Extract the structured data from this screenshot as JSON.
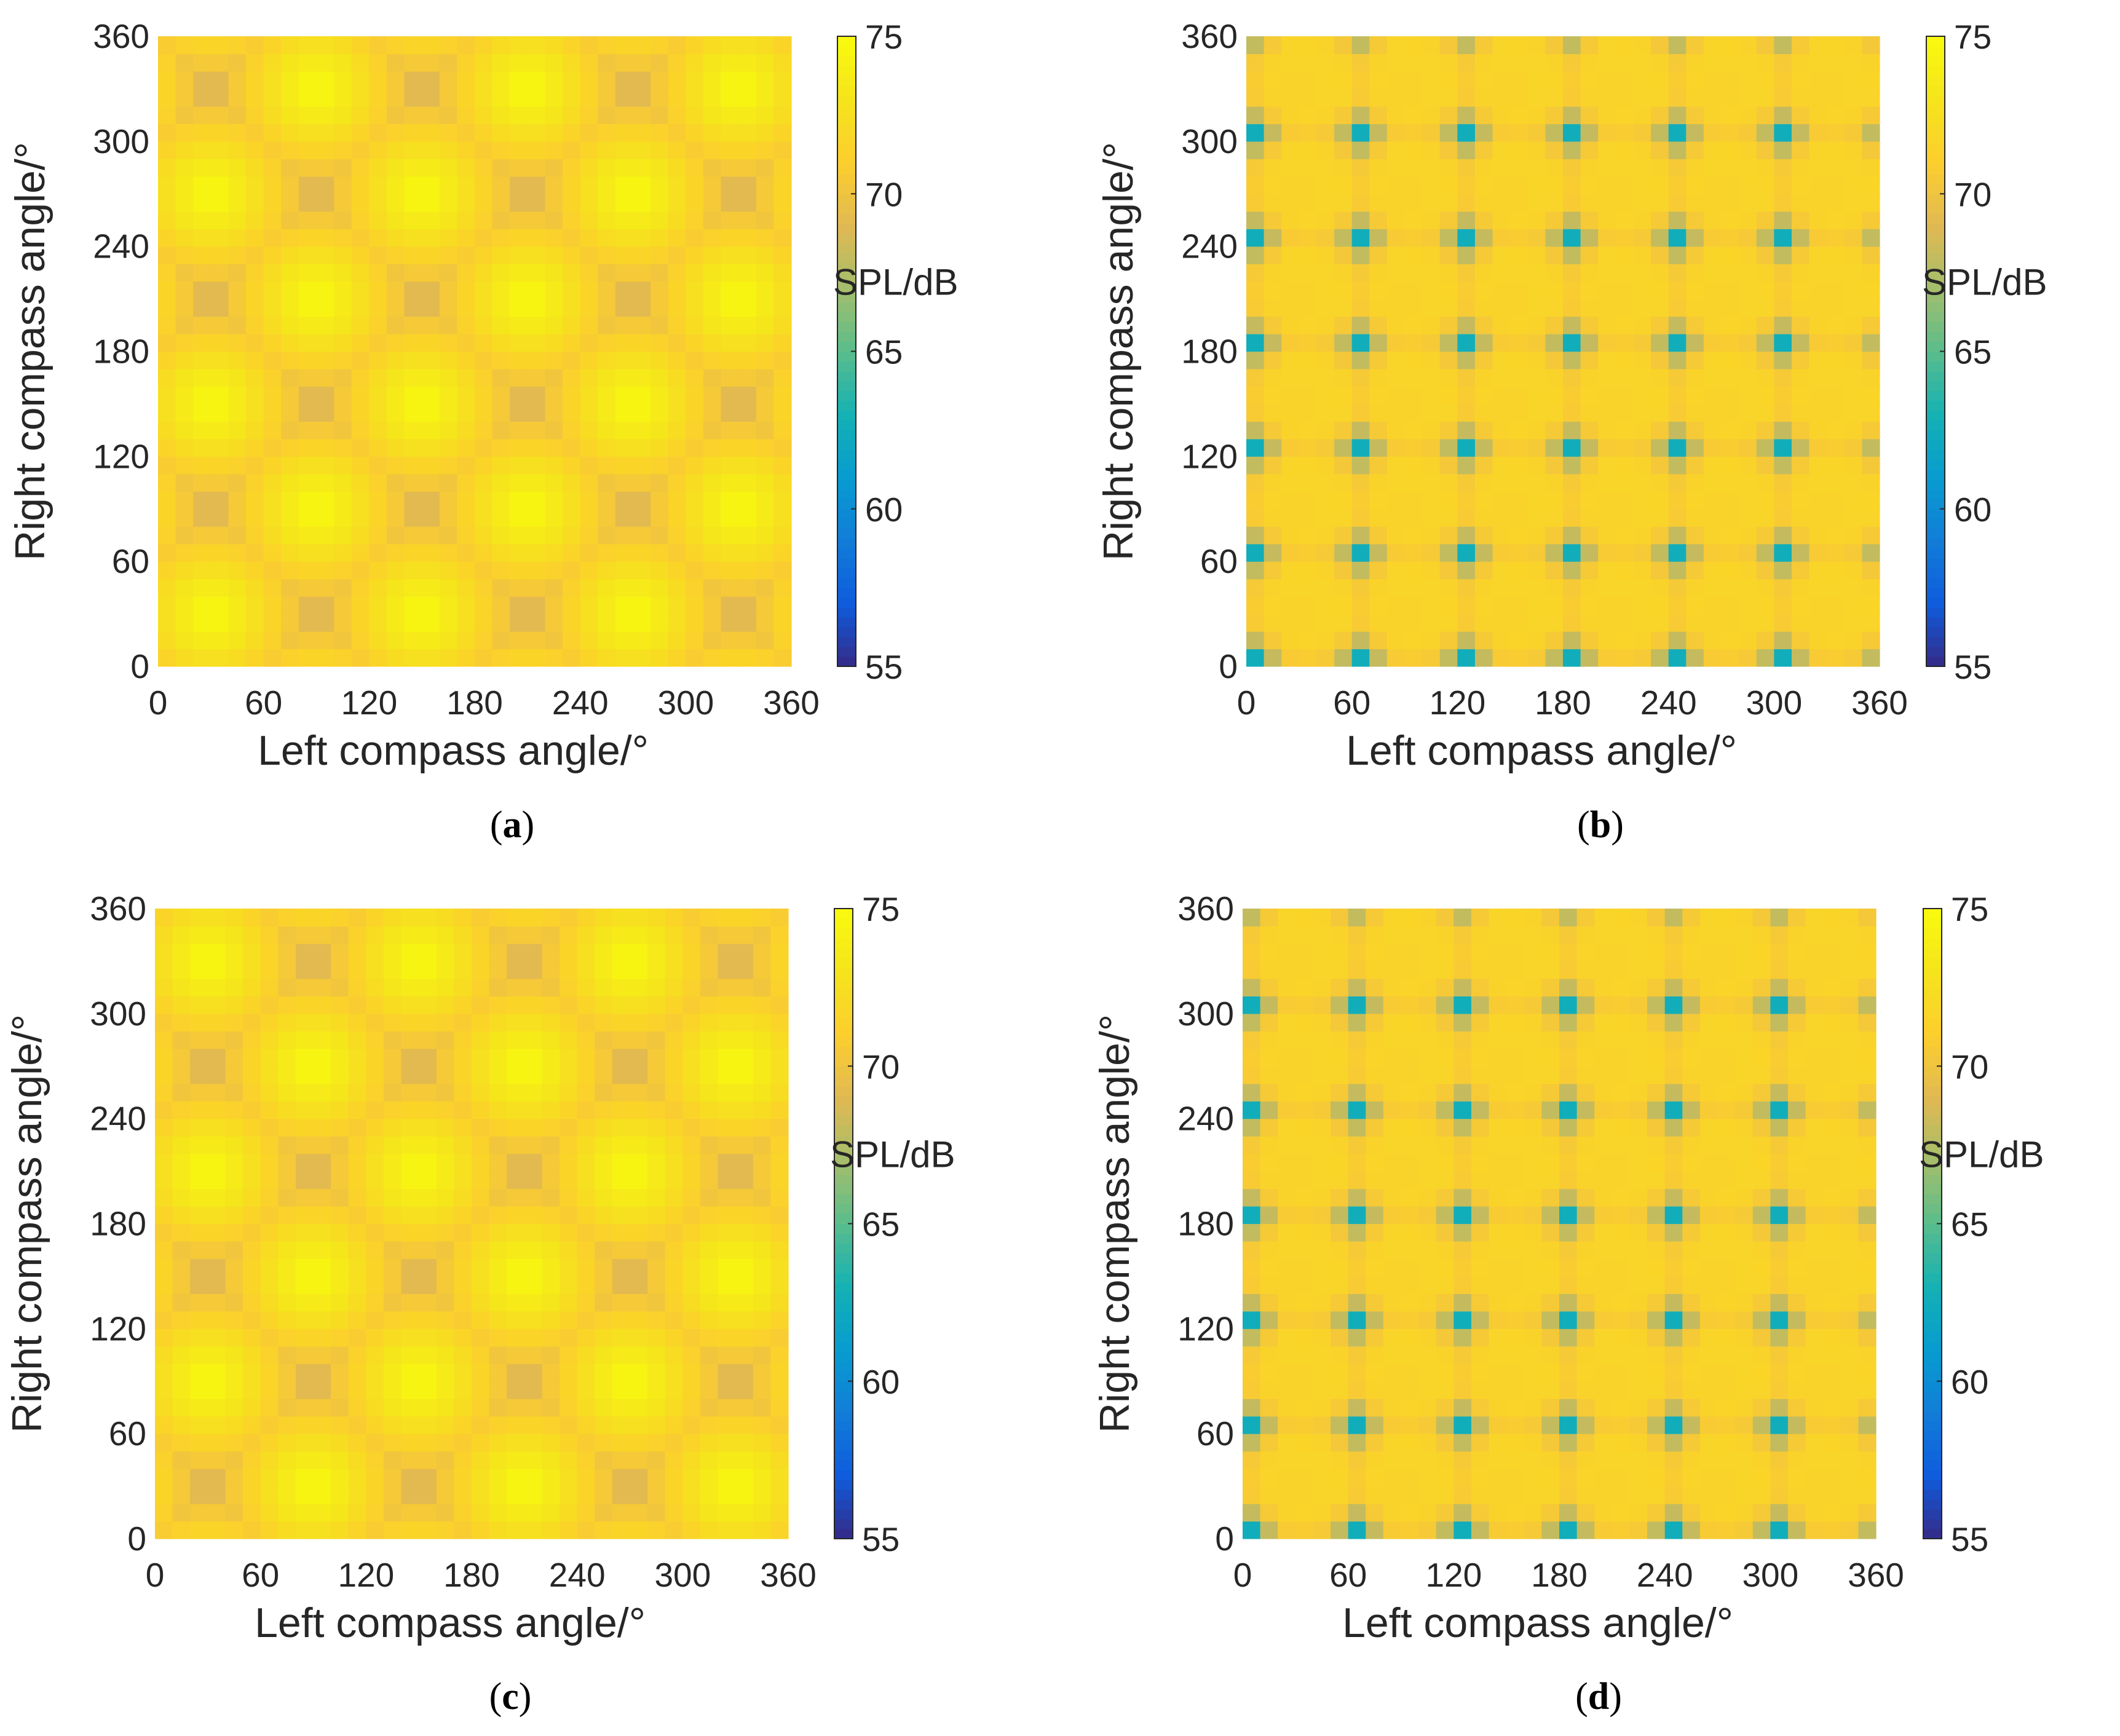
{
  "chart_data": [
    {
      "type": "heatmap",
      "panel": "a",
      "caption_open": "(",
      "caption_letter": "a",
      "caption_close": ")",
      "xlabel": "Left compass angle/°",
      "ylabel": "Right compass angle/°",
      "colorbar_label": "SPL/dB",
      "xlim": [
        0,
        360
      ],
      "ylim": [
        0,
        360
      ],
      "xticks": [
        "0",
        "60",
        "120",
        "180",
        "240",
        "300",
        "360"
      ],
      "yticks": [
        "0",
        "60",
        "120",
        "180",
        "240",
        "300",
        "360"
      ],
      "clim": [
        55,
        75
      ],
      "cticks": [
        "55",
        "60",
        "65",
        "70",
        "75"
      ],
      "colormap": "parula",
      "grid_cells": 36,
      "pattern": "Periodic blobs: high SPL (~74-75 dB) centered at left/right angle pairs spaced by 60°; minimum ~67 dB between blobs",
      "period_deg": 60,
      "phase_offset_deg": 30,
      "max_db": 75,
      "min_db": 67.5
    },
    {
      "type": "heatmap",
      "panel": "b",
      "caption_open": "(",
      "caption_letter": "b",
      "caption_close": ")",
      "xlabel": "Left compass angle/°",
      "ylabel": "Right compass angle/°",
      "colorbar_label": "SPL/dB",
      "xlim": [
        0,
        360
      ],
      "ylim": [
        0,
        360
      ],
      "xticks": [
        "0",
        "60",
        "120",
        "180",
        "240",
        "300",
        "360"
      ],
      "yticks": [
        "0",
        "60",
        "120",
        "180",
        "240",
        "300",
        "360"
      ],
      "clim": [
        55,
        75
      ],
      "cticks": [
        "55",
        "60",
        "65",
        "70",
        "75"
      ],
      "colormap": "parula",
      "grid_cells": 36,
      "pattern": "Nearly uniform ~71.5 dB field with sharp minima (~64 dB) at grid nodes every 60°",
      "period_deg": 60,
      "phase_offset_deg": 5,
      "max_db": 71.6,
      "min_db": 64.5
    },
    {
      "type": "heatmap",
      "panel": "c",
      "caption_open": "(",
      "caption_letter": "c",
      "caption_close": ")",
      "xlabel": "Left compass angle/°",
      "ylabel": "Right compass angle/°",
      "colorbar_label": "SPL/dB",
      "xlim": [
        0,
        360
      ],
      "ylim": [
        0,
        360
      ],
      "xticks": [
        "0",
        "60",
        "120",
        "180",
        "240",
        "300",
        "360"
      ],
      "yticks": [
        "0",
        "60",
        "120",
        "180",
        "240",
        "300",
        "360"
      ],
      "clim": [
        55,
        75
      ],
      "cticks": [
        "55",
        "60",
        "65",
        "70",
        "75"
      ],
      "colormap": "parula",
      "grid_cells": 36,
      "pattern": "Periodic blobs as in (a), shifted by 60° along the left-angle axis",
      "period_deg": 60,
      "phase_offset_deg": 30,
      "max_db": 75,
      "min_db": 67.5
    },
    {
      "type": "heatmap",
      "panel": "d",
      "caption_open": "(",
      "caption_letter": "d",
      "caption_close": ")",
      "xlabel": "Left compass angle/°",
      "ylabel": "Right compass angle/°",
      "colorbar_label": "SPL/dB",
      "xlim": [
        0,
        360
      ],
      "ylim": [
        0,
        360
      ],
      "xticks": [
        "0",
        "60",
        "120",
        "180",
        "240",
        "300",
        "360"
      ],
      "yticks": [
        "0",
        "60",
        "120",
        "180",
        "240",
        "300",
        "360"
      ],
      "clim": [
        55,
        75
      ],
      "cticks": [
        "55",
        "60",
        "65",
        "70",
        "75"
      ],
      "colormap": "parula",
      "grid_cells": 36,
      "pattern": "Nearly uniform ~71.5 dB field with sharp minima (~64 dB) at grid nodes every 60°",
      "period_deg": 60,
      "phase_offset_deg": 5,
      "max_db": 71.6,
      "min_db": 64.5
    }
  ]
}
